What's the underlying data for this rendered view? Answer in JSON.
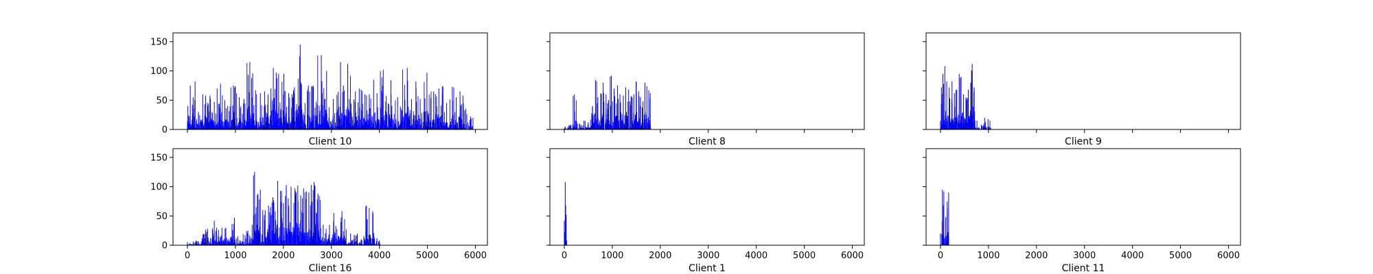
{
  "chart_data": [
    {
      "type": "bar",
      "title": "Client 10",
      "xlim": [
        -300,
        6250
      ],
      "ylim": [
        0,
        165
      ],
      "xticks": [
        0,
        1000,
        2000,
        3000,
        4000,
        5000,
        6000
      ],
      "yticks": [
        0,
        50,
        100,
        150
      ],
      "show_xtick_labels": false,
      "show_ytick_labels": true,
      "bar_color": "#0000ff",
      "accent_color": "#000000",
      "x_range": [
        0,
        5950
      ],
      "peaks": [
        [
          10,
          40
        ],
        [
          60,
          75
        ],
        [
          120,
          55
        ],
        [
          160,
          82
        ],
        [
          230,
          30
        ],
        [
          320,
          60
        ],
        [
          380,
          58
        ],
        [
          470,
          58
        ],
        [
          560,
          47
        ],
        [
          620,
          70
        ],
        [
          690,
          78
        ],
        [
          780,
          50
        ],
        [
          840,
          40
        ],
        [
          960,
          75
        ],
        [
          1000,
          74
        ],
        [
          1080,
          55
        ],
        [
          1180,
          52
        ],
        [
          1300,
          115
        ],
        [
          1360,
          96
        ],
        [
          1420,
          67
        ],
        [
          1520,
          62
        ],
        [
          1610,
          65
        ],
        [
          1680,
          60
        ],
        [
          1740,
          70
        ],
        [
          1790,
          105
        ],
        [
          1850,
          97
        ],
        [
          1900,
          95
        ],
        [
          2010,
          95
        ],
        [
          2110,
          62
        ],
        [
          2180,
          60
        ],
        [
          2230,
          72
        ],
        [
          2350,
          145
        ],
        [
          2450,
          45
        ],
        [
          2520,
          75
        ],
        [
          2620,
          75
        ],
        [
          2790,
          127
        ],
        [
          2900,
          100
        ],
        [
          3040,
          52
        ],
        [
          3190,
          115
        ],
        [
          3250,
          75
        ],
        [
          3340,
          112
        ],
        [
          3500,
          65
        ],
        [
          3580,
          70
        ],
        [
          3620,
          68
        ],
        [
          3700,
          60
        ],
        [
          3790,
          60
        ],
        [
          3880,
          85
        ],
        [
          3950,
          62
        ],
        [
          4080,
          102
        ],
        [
          4240,
          84
        ],
        [
          4380,
          55
        ],
        [
          4580,
          105
        ],
        [
          4670,
          52
        ],
        [
          4760,
          82
        ],
        [
          4850,
          52
        ],
        [
          4990,
          97
        ],
        [
          5130,
          65
        ],
        [
          5240,
          70
        ],
        [
          5310,
          74
        ],
        [
          5400,
          45
        ],
        [
          5520,
          73
        ],
        [
          5600,
          55
        ],
        [
          5680,
          65
        ],
        [
          5740,
          58
        ],
        [
          5800,
          35
        ],
        [
          5900,
          22
        ]
      ]
    },
    {
      "type": "bar",
      "title": "Client 8",
      "xlim": [
        -300,
        6250
      ],
      "ylim": [
        0,
        165
      ],
      "xticks": [
        0,
        1000,
        2000,
        3000,
        4000,
        5000,
        6000
      ],
      "yticks": [
        0,
        50,
        100,
        150
      ],
      "show_xtick_labels": false,
      "show_ytick_labels": false,
      "bar_color": "#0000ff",
      "accent_color": "#000000",
      "x_range": [
        0,
        1800
      ],
      "peaks": [
        [
          20,
          5
        ],
        [
          140,
          8
        ],
        [
          210,
          60
        ],
        [
          320,
          10
        ],
        [
          410,
          15
        ],
        [
          500,
          12
        ],
        [
          590,
          40
        ],
        [
          650,
          85
        ],
        [
          700,
          55
        ],
        [
          760,
          62
        ],
        [
          810,
          80
        ],
        [
          870,
          60
        ],
        [
          920,
          50
        ],
        [
          980,
          92
        ],
        [
          1040,
          70
        ],
        [
          1110,
          75
        ],
        [
          1160,
          60
        ],
        [
          1230,
          58
        ],
        [
          1280,
          72
        ],
        [
          1340,
          68
        ],
        [
          1390,
          57
        ],
        [
          1450,
          60
        ],
        [
          1500,
          82
        ],
        [
          1550,
          65
        ],
        [
          1590,
          55
        ],
        [
          1640,
          48
        ],
        [
          1680,
          80
        ],
        [
          1720,
          74
        ],
        [
          1760,
          67
        ],
        [
          1790,
          62
        ]
      ]
    },
    {
      "type": "bar",
      "title": "Client 9",
      "xlim": [
        -300,
        6250
      ],
      "ylim": [
        0,
        165
      ],
      "xticks": [
        0,
        1000,
        2000,
        3000,
        4000,
        5000,
        6000
      ],
      "yticks": [
        0,
        50,
        100,
        150
      ],
      "show_xtick_labels": false,
      "show_ytick_labels": false,
      "bar_color": "#0000ff",
      "accent_color": "#000000",
      "x_range": [
        0,
        1050
      ],
      "peaks": [
        [
          20,
          72
        ],
        [
          50,
          95
        ],
        [
          90,
          108
        ],
        [
          130,
          82
        ],
        [
          180,
          72
        ],
        [
          240,
          82
        ],
        [
          290,
          62
        ],
        [
          340,
          68
        ],
        [
          390,
          95
        ],
        [
          430,
          90
        ],
        [
          480,
          60
        ],
        [
          530,
          55
        ],
        [
          580,
          68
        ],
        [
          630,
          80
        ],
        [
          660,
          112
        ],
        [
          700,
          72
        ],
        [
          760,
          15
        ],
        [
          850,
          8
        ],
        [
          920,
          20
        ],
        [
          990,
          18
        ],
        [
          1030,
          15
        ]
      ]
    },
    {
      "type": "bar",
      "title": "Client 16",
      "xlim": [
        -300,
        6250
      ],
      "ylim": [
        0,
        165
      ],
      "xticks": [
        0,
        1000,
        2000,
        3000,
        4000,
        5000,
        6000
      ],
      "yticks": [
        0,
        50,
        100,
        150
      ],
      "show_xtick_labels": true,
      "show_ytick_labels": true,
      "bar_color": "#0000ff",
      "accent_color": "#000000",
      "x_range": [
        0,
        4020
      ],
      "peaks": [
        [
          0,
          5
        ],
        [
          180,
          8
        ],
        [
          420,
          28
        ],
        [
          480,
          12
        ],
        [
          560,
          42
        ],
        [
          610,
          30
        ],
        [
          720,
          30
        ],
        [
          800,
          30
        ],
        [
          980,
          47
        ],
        [
          1050,
          15
        ],
        [
          1260,
          25
        ],
        [
          1350,
          35
        ],
        [
          1400,
          125
        ],
        [
          1470,
          88
        ],
        [
          1520,
          95
        ],
        [
          1570,
          60
        ],
        [
          1620,
          60
        ],
        [
          1690,
          68
        ],
        [
          1730,
          65
        ],
        [
          1780,
          82
        ],
        [
          1830,
          58
        ],
        [
          1880,
          110
        ],
        [
          1940,
          93
        ],
        [
          2000,
          72
        ],
        [
          2060,
          103
        ],
        [
          2100,
          80
        ],
        [
          2160,
          100
        ],
        [
          2240,
          97
        ],
        [
          2300,
          102
        ],
        [
          2360,
          85
        ],
        [
          2420,
          97
        ],
        [
          2480,
          92
        ],
        [
          2530,
          90
        ],
        [
          2580,
          103
        ],
        [
          2640,
          108
        ],
        [
          2720,
          88
        ],
        [
          2830,
          35
        ],
        [
          2960,
          35
        ],
        [
          3050,
          55
        ],
        [
          3220,
          58
        ],
        [
          3400,
          20
        ],
        [
          3540,
          20
        ],
        [
          3620,
          10
        ],
        [
          3730,
          68
        ],
        [
          3860,
          58
        ],
        [
          3950,
          12
        ],
        [
          4000,
          8
        ]
      ]
    },
    {
      "type": "bar",
      "title": "Client 1",
      "xlim": [
        -300,
        6250
      ],
      "ylim": [
        0,
        165
      ],
      "xticks": [
        0,
        1000,
        2000,
        3000,
        4000,
        5000,
        6000
      ],
      "yticks": [
        0,
        50,
        100,
        150
      ],
      "show_xtick_labels": true,
      "show_ytick_labels": false,
      "bar_color": "#0000ff",
      "accent_color": "#000000",
      "x_range": [
        0,
        50
      ],
      "peaks": [
        [
          0,
          42
        ],
        [
          20,
          108
        ],
        [
          40,
          52
        ]
      ]
    },
    {
      "type": "bar",
      "title": "Client 11",
      "xlim": [
        -300,
        6250
      ],
      "ylim": [
        0,
        165
      ],
      "xticks": [
        0,
        1000,
        2000,
        3000,
        4000,
        5000,
        6000
      ],
      "yticks": [
        0,
        50,
        100,
        150
      ],
      "show_xtick_labels": true,
      "show_ytick_labels": false,
      "bar_color": "#0000ff",
      "accent_color": "#000000",
      "x_range": [
        0,
        170
      ],
      "peaks": [
        [
          0,
          20
        ],
        [
          40,
          95
        ],
        [
          70,
          92
        ],
        [
          110,
          48
        ],
        [
          140,
          75
        ],
        [
          170,
          90
        ]
      ]
    }
  ]
}
